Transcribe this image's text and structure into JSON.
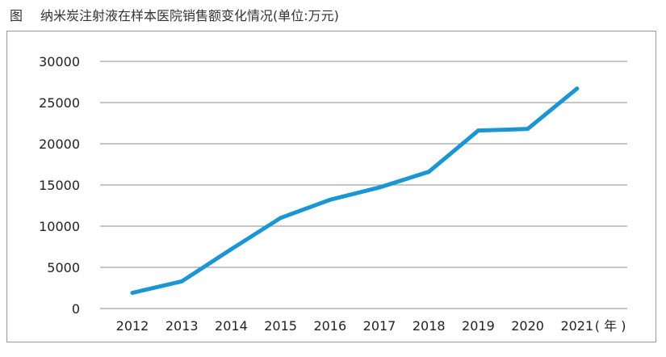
{
  "figure_label": "图",
  "chart_data": {
    "type": "line",
    "title": "纳米炭注射液在样本医院销售额变化情况(单位:万元)",
    "xlabel": "",
    "ylabel": "",
    "x_unit_label": "( 年 )",
    "categories": [
      "2012",
      "2013",
      "2014",
      "2015",
      "2016",
      "2017",
      "2018",
      "2019",
      "2020",
      "2021"
    ],
    "series": [
      {
        "values": [
          1900,
          3300,
          7200,
          11000,
          13200,
          14700,
          16600,
          21600,
          21800,
          26700
        ]
      }
    ],
    "ylim": [
      0,
      30000
    ],
    "yticks": [
      0,
      5000,
      10000,
      15000,
      20000,
      25000,
      30000
    ],
    "grid": true,
    "legend": "none",
    "line_color": "#1b96d4",
    "grid_color": "#8c8c8c"
  }
}
